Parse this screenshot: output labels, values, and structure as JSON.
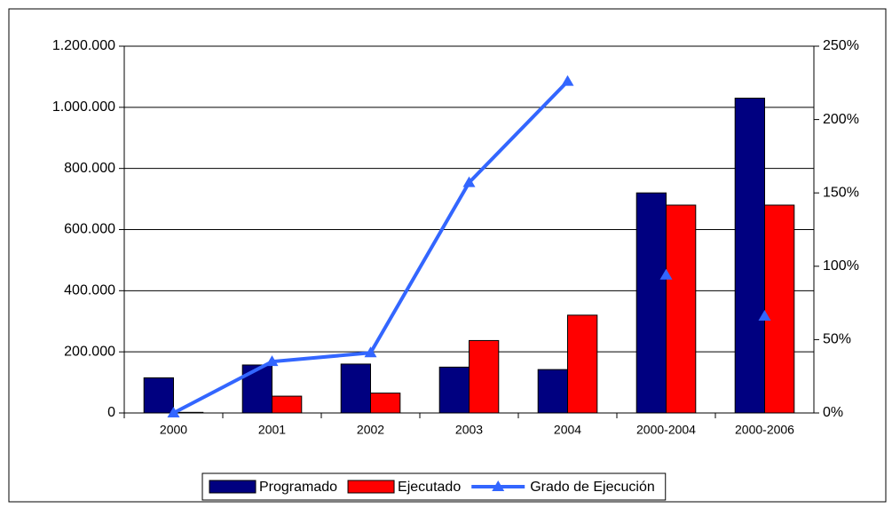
{
  "chart_data": {
    "type": "bar-line",
    "categories": [
      "2000",
      "2001",
      "2002",
      "2003",
      "2004",
      "2000-2004",
      "2000-2006"
    ],
    "series": [
      {
        "name": "Programado",
        "color": "#000080",
        "values": [
          115000,
          157000,
          160000,
          150000,
          142000,
          720000,
          1030000
        ]
      },
      {
        "name": "Ejecutado",
        "color": "#ff0000",
        "values": [
          2000,
          55000,
          65000,
          237000,
          320000,
          680000,
          680000
        ]
      },
      {
        "name": "Grado de Ejecución",
        "color": "#3366ff",
        "axis": "y2",
        "kind": "line",
        "values": [
          0,
          35,
          41,
          157,
          226,
          null,
          null
        ]
      },
      {
        "color": "#3366ff",
        "axis": "y2",
        "kind": "markers",
        "values": [
          null,
          null,
          null,
          null,
          null,
          94,
          66
        ]
      }
    ],
    "ylim": [
      0,
      1200000
    ],
    "yticks": [
      0,
      {
        "value": 200000,
        "label": "200.000"
      },
      {
        "value": 400000,
        "label": "400.000"
      },
      {
        "value": 600000,
        "label": "600.000"
      },
      {
        "value": 800000,
        "label": "800.000"
      },
      {
        "value": 1000000,
        "label": "1.000.000"
      },
      {
        "value": 1200000,
        "label": "1.200.000"
      }
    ],
    "y2lim": [
      0,
      250
    ],
    "y2ticks": [
      {
        "value": 0,
        "label": "0%"
      },
      {
        "value": 50,
        "label": "50%"
      },
      {
        "value": 100,
        "label": "100%"
      },
      {
        "value": 150,
        "label": "150%"
      },
      {
        "value": 200,
        "label": "200%"
      },
      {
        "value": 250,
        "label": "250%"
      }
    ],
    "grid": true,
    "legend": "bottom"
  }
}
